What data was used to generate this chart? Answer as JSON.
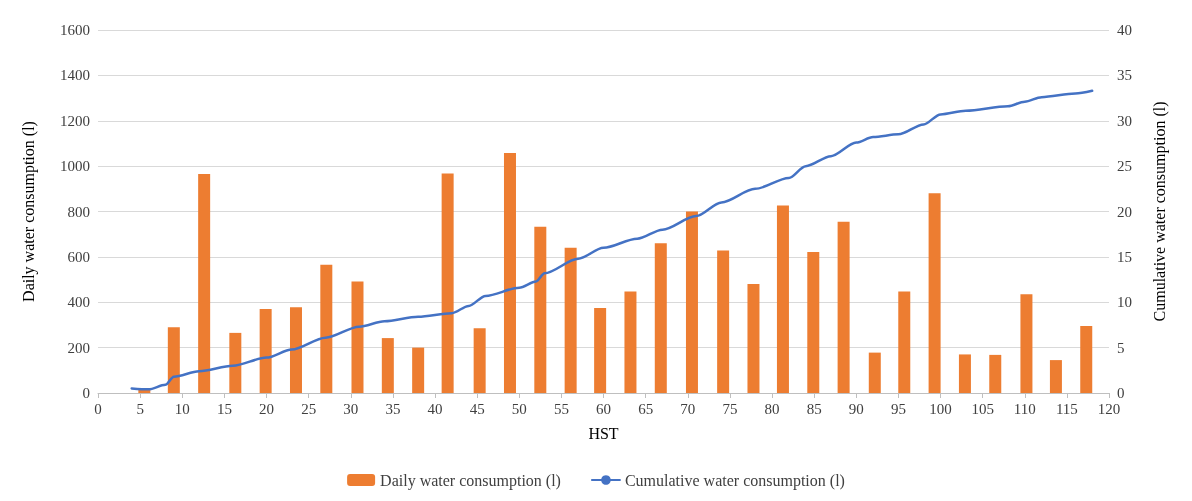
{
  "chart_data": {
    "type": "bar",
    "xlabel": "HST",
    "ylabel": "Daily water consumption (l)",
    "y2label": "Cumulative water consumption (l)",
    "xlim": [
      0,
      120
    ],
    "xticks": [
      0,
      5,
      10,
      15,
      20,
      25,
      30,
      35,
      40,
      45,
      50,
      55,
      60,
      65,
      70,
      75,
      80,
      85,
      90,
      95,
      100,
      105,
      110,
      115,
      120
    ],
    "ylim": [
      0,
      1600
    ],
    "yticks": [
      0,
      200,
      400,
      600,
      800,
      1000,
      1200,
      1400,
      1600
    ],
    "y2lim": [
      0,
      40
    ],
    "y2ticks": [
      0,
      5,
      10,
      15,
      20,
      25,
      30,
      35,
      40
    ],
    "grid": "y",
    "legend": "bottom",
    "marker": "none",
    "line_style": "solid",
    "series": [
      {
        "name": "Daily water consumption (l)",
        "color": "#ed7d31",
        "x": [
          5.5,
          9,
          12.6,
          16.3,
          19.9,
          23.5,
          27.1,
          30.8,
          34.4,
          38,
          41.5,
          45.3,
          48.9,
          52.5,
          56.1,
          59.6,
          63.2,
          66.8,
          70.5,
          74.2,
          77.8,
          81.3,
          84.9,
          88.5,
          92.2,
          95.7,
          99.3,
          102.9,
          106.5,
          110.2,
          113.7,
          117.3
        ],
        "values": [
          15,
          290,
          965,
          265,
          370,
          378,
          565,
          492,
          242,
          200,
          968,
          285,
          1058,
          733,
          640,
          375,
          447,
          660,
          800,
          628,
          480,
          826,
          622,
          755,
          178,
          447,
          880,
          170,
          168,
          435,
          145,
          295
        ]
      },
      {
        "name": "Cumulative water consumption (l)",
        "type": "line",
        "axis": "y2",
        "color": "#4472c4",
        "x": [
          4,
          6,
          8,
          9,
          12,
          16,
          20,
          23,
          27,
          31,
          34,
          38,
          42,
          44,
          46,
          50,
          52,
          53,
          57,
          60,
          64,
          67,
          71,
          74,
          78,
          82,
          84,
          87,
          90,
          92,
          95,
          98,
          100,
          103,
          108,
          110,
          112,
          116,
          118
        ],
        "values": [
          0.5,
          0.4,
          0.9,
          1.8,
          2.4,
          3.0,
          3.9,
          4.8,
          6.1,
          7.3,
          7.9,
          8.4,
          8.8,
          9.6,
          10.7,
          11.6,
          12.3,
          13.2,
          14.8,
          16.0,
          17.0,
          18.0,
          19.5,
          21.0,
          22.5,
          23.7,
          25.0,
          26.1,
          27.6,
          28.2,
          28.5,
          29.6,
          30.7,
          31.1,
          31.6,
          32.1,
          32.6,
          33.0,
          33.3
        ]
      }
    ]
  }
}
